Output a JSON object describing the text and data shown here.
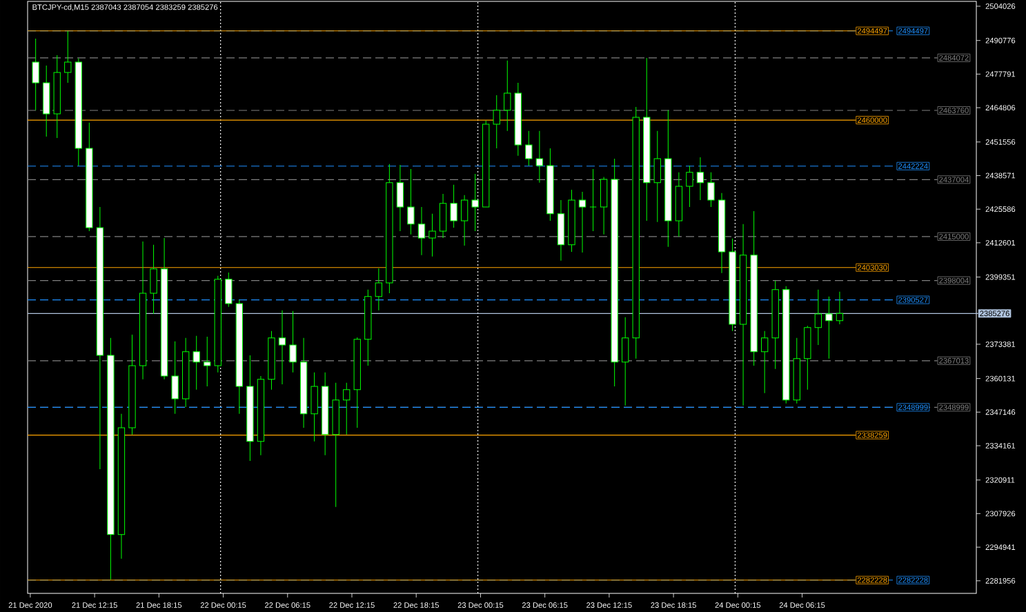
{
  "chart_data": {
    "type": "candlestick",
    "title": "BTCJPY-cd,M15  2387043 2387054 2383259 2385276",
    "color": "#00ff00",
    "x": [
      "2020-12-21T06:45",
      "2020-12-21T07:45",
      "2020-12-21T08:45",
      "2020-12-21T09:45",
      "2020-12-21T10:45",
      "2020-12-21T11:45",
      "2020-12-21T12:45",
      "2020-12-21T13:45",
      "2020-12-21T14:45",
      "2020-12-21T15:45",
      "2020-12-21T16:45",
      "2020-12-21T17:45",
      "2020-12-21T18:45",
      "2020-12-21T19:45",
      "2020-12-21T20:45",
      "2020-12-21T21:45",
      "2020-12-21T22:45",
      "2020-12-21T23:45",
      "2020-12-22T00:45",
      "2020-12-22T01:45",
      "2020-12-22T02:45",
      "2020-12-22T03:45",
      "2020-12-22T04:45",
      "2020-12-22T05:45",
      "2020-12-22T06:45",
      "2020-12-22T07:45",
      "2020-12-22T08:45",
      "2020-12-22T09:45",
      "2020-12-22T10:45",
      "2020-12-22T11:45",
      "2020-12-22T12:45",
      "2020-12-22T13:45",
      "2020-12-22T14:45",
      "2020-12-22T15:45",
      "2020-12-22T16:45",
      "2020-12-22T17:45",
      "2020-12-22T18:45",
      "2020-12-22T19:45",
      "2020-12-22T20:45",
      "2020-12-22T21:45",
      "2020-12-22T22:45",
      "2020-12-22T23:45",
      "2020-12-23T00:45",
      "2020-12-23T01:45",
      "2020-12-23T02:45",
      "2020-12-23T03:45",
      "2020-12-23T04:45",
      "2020-12-23T05:45",
      "2020-12-23T06:45",
      "2020-12-23T07:45",
      "2020-12-23T08:45",
      "2020-12-23T09:45",
      "2020-12-23T10:45",
      "2020-12-23T11:45",
      "2020-12-23T12:45",
      "2020-12-23T13:45",
      "2020-12-23T14:45",
      "2020-12-23T15:45",
      "2020-12-23T16:45",
      "2020-12-23T17:45",
      "2020-12-23T18:45",
      "2020-12-23T19:45",
      "2020-12-23T20:45",
      "2020-12-23T21:45",
      "2020-12-23T22:45",
      "2020-12-23T23:45",
      "2020-12-24T00:45",
      "2020-12-24T01:45",
      "2020-12-24T02:45",
      "2020-12-24T03:45",
      "2020-12-24T04:45",
      "2020-12-24T05:45",
      "2020-12-24T06:45",
      "2020-12-24T07:45",
      "2020-12-24T08:45",
      "2020-12-24T09:45"
    ],
    "ohlc": [
      [
        2482400,
        2491500,
        2463800,
        2474400
      ],
      [
        2474400,
        2481100,
        2453600,
        2462400
      ],
      [
        2462400,
        2485100,
        2453100,
        2478400
      ],
      [
        2478400,
        2494400,
        2474400,
        2482400
      ],
      [
        2482400,
        2483800,
        2442400,
        2449100
      ],
      [
        2449100,
        2459000,
        2417100,
        2418400
      ],
      [
        2418400,
        2426400,
        2325100,
        2369100
      ],
      [
        2369100,
        2375800,
        2282500,
        2299800
      ],
      [
        2299800,
        2346500,
        2290500,
        2341100
      ],
      [
        2341100,
        2377100,
        2338500,
        2365100
      ],
      [
        2365100,
        2413100,
        2359800,
        2393100
      ],
      [
        2393100,
        2411800,
        2385100,
        2402500
      ],
      [
        2402500,
        2414400,
        2359800,
        2361100
      ],
      [
        2361100,
        2374500,
        2346500,
        2352300
      ],
      [
        2352300,
        2375800,
        2349100,
        2370500
      ],
      [
        2370500,
        2376600,
        2355800,
        2366500
      ],
      [
        2366500,
        2376300,
        2357100,
        2365100
      ],
      [
        2365100,
        2399800,
        2362500,
        2398500
      ],
      [
        2398500,
        2401100,
        2387800,
        2389100
      ],
      [
        2389100,
        2390500,
        2346500,
        2357100
      ],
      [
        2357100,
        2369100,
        2328300,
        2335800
      ],
      [
        2335800,
        2361100,
        2330500,
        2359800
      ],
      [
        2359800,
        2378500,
        2355800,
        2375800
      ],
      [
        2375800,
        2386500,
        2357900,
        2373100
      ],
      [
        2373100,
        2386200,
        2362500,
        2366500
      ],
      [
        2366500,
        2375800,
        2341100,
        2346500
      ],
      [
        2346500,
        2362500,
        2335800,
        2357100
      ],
      [
        2357100,
        2362500,
        2330500,
        2338500
      ],
      [
        2338500,
        2358500,
        2310500,
        2351800
      ],
      [
        2351800,
        2358500,
        2338500,
        2355800
      ],
      [
        2355800,
        2376000,
        2341100,
        2375300
      ],
      [
        2375300,
        2394500,
        2365100,
        2391800
      ],
      [
        2391800,
        2402700,
        2386500,
        2397100
      ],
      [
        2397100,
        2443000,
        2393100,
        2435800
      ],
      [
        2435800,
        2442700,
        2417100,
        2426400
      ],
      [
        2426400,
        2441100,
        2415800,
        2419800
      ],
      [
        2419800,
        2426400,
        2407800,
        2414400
      ],
      [
        2414400,
        2423800,
        2407300,
        2417100
      ],
      [
        2417100,
        2431500,
        2414400,
        2427800
      ],
      [
        2427800,
        2435000,
        2418400,
        2421100
      ],
      [
        2421100,
        2431000,
        2411500,
        2429100
      ],
      [
        2429100,
        2439200,
        2417100,
        2426400
      ],
      [
        2426400,
        2459800,
        2426400,
        2458400
      ],
      [
        2458400,
        2469600,
        2449100,
        2463800
      ],
      [
        2463800,
        2483000,
        2455800,
        2470400
      ],
      [
        2470400,
        2474400,
        2446200,
        2450400
      ],
      [
        2450400,
        2455800,
        2442400,
        2445100
      ],
      [
        2445100,
        2455800,
        2435800,
        2442400
      ],
      [
        2442400,
        2449100,
        2421100,
        2423800
      ],
      [
        2423800,
        2429100,
        2405700,
        2411800
      ],
      [
        2411800,
        2433100,
        2409100,
        2429100
      ],
      [
        2429100,
        2432300,
        2408800,
        2426400
      ],
      [
        2426400,
        2441100,
        2417100,
        2426400
      ],
      [
        2426400,
        2438000,
        2415800,
        2437100
      ],
      [
        2437100,
        2445100,
        2357100,
        2366500
      ],
      [
        2366500,
        2383800,
        2349700,
        2375800
      ],
      [
        2375800,
        2465100,
        2367800,
        2461100
      ],
      [
        2461100,
        2484000,
        2421100,
        2435800
      ],
      [
        2435800,
        2455800,
        2420600,
        2445100
      ],
      [
        2445100,
        2463800,
        2411000,
        2421100
      ],
      [
        2421100,
        2439800,
        2415000,
        2434400
      ],
      [
        2434400,
        2442400,
        2426400,
        2439800
      ],
      [
        2439800,
        2445600,
        2429100,
        2435800
      ],
      [
        2435800,
        2439800,
        2426400,
        2429100
      ],
      [
        2429100,
        2431800,
        2400900,
        2409100
      ],
      [
        2409100,
        2414200,
        2378500,
        2381100
      ],
      [
        2381100,
        2419800,
        2349700,
        2407800
      ],
      [
        2407800,
        2424800,
        2365100,
        2370500
      ],
      [
        2370500,
        2378500,
        2354500,
        2375800
      ],
      [
        2375800,
        2397900,
        2363800,
        2394500
      ],
      [
        2394500,
        2395800,
        2350500,
        2351800
      ],
      [
        2351800,
        2375800,
        2350500,
        2367800
      ],
      [
        2367800,
        2380500,
        2355800,
        2379800
      ],
      [
        2379800,
        2394500,
        2373100,
        2385100
      ],
      [
        2385100,
        2391800,
        2367800,
        2382500
      ],
      [
        2382500,
        2393700,
        2381100,
        2385276
      ]
    ],
    "xlim": [
      "2020-12-21T06:00",
      "2020-12-24T22:30"
    ],
    "ylim": [
      2277100,
      2505900
    ],
    "xticks": [
      {
        "value": "2020-12-21T06:15",
        "label": "21 Dec 2020"
      },
      {
        "value": "2020-12-21T12:15",
        "label": "21 Dec 12:15"
      },
      {
        "value": "2020-12-21T18:15",
        "label": "21 Dec 18:15"
      },
      {
        "value": "2020-12-22T00:15",
        "label": "22 Dec 00:15"
      },
      {
        "value": "2020-12-22T06:15",
        "label": "22 Dec 06:15"
      },
      {
        "value": "2020-12-22T12:15",
        "label": "22 Dec 12:15"
      },
      {
        "value": "2020-12-22T18:15",
        "label": "22 Dec 18:15"
      },
      {
        "value": "2020-12-23T00:15",
        "label": "23 Dec 00:15"
      },
      {
        "value": "2020-12-23T06:15",
        "label": "23 Dec 06:15"
      },
      {
        "value": "2020-12-23T12:15",
        "label": "23 Dec 12:15"
      },
      {
        "value": "2020-12-23T18:15",
        "label": "23 Dec 18:15"
      },
      {
        "value": "2020-12-24T00:15",
        "label": "24 Dec 00:15"
      },
      {
        "value": "2020-12-24T06:15",
        "label": "24 Dec 06:15"
      }
    ],
    "yticks": [
      2504026,
      2490776,
      2477791,
      2464806,
      2451556,
      2438571,
      2425586,
      2412601,
      2399351,
      2373381,
      2360131,
      2347146,
      2334161,
      2320911,
      2307926,
      2294941,
      2281956
    ],
    "ref_lines": [
      {
        "axis": "y",
        "value": 2494497,
        "label": "2494497",
        "color": "#ffa500",
        "line_style": "solid"
      },
      {
        "axis": "y",
        "value": 2460000,
        "label": "2460000",
        "color": "#ffa500",
        "line_style": "solid"
      },
      {
        "axis": "y",
        "value": 2403030,
        "label": "2403030",
        "color": "#ffa500",
        "line_style": "solid"
      },
      {
        "axis": "y",
        "value": 2338259,
        "label": "2338259",
        "color": "#ffa500",
        "line_style": "solid"
      },
      {
        "axis": "y",
        "value": 2282228,
        "label": "2282228",
        "color": "#ffa500",
        "line_style": "solid"
      },
      {
        "axis": "y",
        "value": 2494497,
        "label": "2494497",
        "color": "#1e90ff",
        "line_style": "dashed"
      },
      {
        "axis": "y",
        "value": 2442224,
        "label": "2442224",
        "color": "#1e90ff",
        "line_style": "dashed"
      },
      {
        "axis": "y",
        "value": 2390527,
        "label": "2390527",
        "color": "#1e90ff",
        "line_style": "dashed"
      },
      {
        "axis": "y",
        "value": 2348999,
        "label": "2348999",
        "color": "#1e90ff",
        "line_style": "dashed"
      },
      {
        "axis": "y",
        "value": 2282228,
        "label": "2282228",
        "color": "#1e90ff",
        "line_style": "dashed"
      },
      {
        "axis": "y",
        "value": 2484072,
        "label": "2484072",
        "color": "#808080",
        "line_style": "dashed"
      },
      {
        "axis": "y",
        "value": 2463760,
        "label": "2463760",
        "color": "#808080",
        "line_style": "dashed"
      },
      {
        "axis": "y",
        "value": 2437004,
        "label": "2437004",
        "color": "#808080",
        "line_style": "dashed"
      },
      {
        "axis": "y",
        "value": 2415000,
        "label": "2415000",
        "color": "#808080",
        "line_style": "dashed"
      },
      {
        "axis": "y",
        "value": 2398004,
        "label": "2398004",
        "color": "#808080",
        "line_style": "dashed"
      },
      {
        "axis": "y",
        "value": 2367013,
        "label": "2367013",
        "color": "#808080",
        "line_style": "dashed"
      },
      {
        "axis": "y",
        "value": 2348999,
        "label": "2348999",
        "color": "#808080",
        "line_style": "dashed"
      },
      {
        "axis": "y",
        "value": 2385276,
        "label": "2385276",
        "color": "#b0c4de",
        "line_style": "solid"
      },
      {
        "axis": "x",
        "value": "2020-12-22T00:00",
        "label": null,
        "color": "#ffffff",
        "line_style": "dotted"
      },
      {
        "axis": "x",
        "value": "2020-12-23T00:00",
        "label": null,
        "color": "#ffffff",
        "line_style": "dotted"
      },
      {
        "axis": "x",
        "value": "2020-12-24T00:00",
        "label": null,
        "color": "#ffffff",
        "line_style": "dotted"
      }
    ]
  }
}
